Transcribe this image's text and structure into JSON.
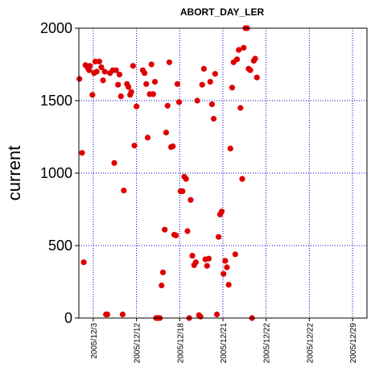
{
  "chart_data": {
    "type": "scatter",
    "title": "ABORT_DAY_LER",
    "xlabel": "",
    "ylabel": "current",
    "ylim": [
      0,
      2000
    ],
    "yticks": [
      0,
      500,
      1000,
      1500,
      2000
    ],
    "xticks": [
      {
        "label": "2005/12/3",
        "x": 5
      },
      {
        "label": "2005/12/12",
        "x": 20
      },
      {
        "label": "2005/12/18",
        "x": 35
      },
      {
        "label": "2005/12/21",
        "x": 50
      },
      {
        "label": "2005/12/22",
        "x": 65
      },
      {
        "label": "2005/12/22",
        "x": 80
      },
      {
        "label": "2005/12/29",
        "x": 95
      }
    ],
    "xlim": [
      0,
      100
    ],
    "grid": true,
    "colors": {
      "point": "#dd0000",
      "grid": "#0000cc",
      "axis": "#000000"
    },
    "series": [
      {
        "values": [
          [
            0.2,
            1650
          ],
          [
            1.1,
            1140
          ],
          [
            1.7,
            385
          ],
          [
            2.3,
            1745
          ],
          [
            3.1,
            1725
          ],
          [
            3.8,
            1740
          ],
          [
            3.6,
            1710
          ],
          [
            4.7,
            1540
          ],
          [
            5.3,
            1690
          ],
          [
            5.7,
            1770
          ],
          [
            6.2,
            1700
          ],
          [
            7.1,
            1770
          ],
          [
            7.8,
            1730
          ],
          [
            8.4,
            1640
          ],
          [
            9.0,
            1700
          ],
          [
            9.4,
            25
          ],
          [
            9.9,
            25
          ],
          [
            10.8,
            1690
          ],
          [
            11.8,
            1710
          ],
          [
            12.3,
            1070
          ],
          [
            12.9,
            1710
          ],
          [
            13.6,
            1610
          ],
          [
            14.1,
            1680
          ],
          [
            14.6,
            1530
          ],
          [
            15.2,
            25
          ],
          [
            15.6,
            880
          ],
          [
            16.7,
            1615
          ],
          [
            17.2,
            1595
          ],
          [
            17.8,
            1540
          ],
          [
            18.2,
            1560
          ],
          [
            18.8,
            1740
          ],
          [
            19.3,
            1190
          ],
          [
            20.0,
            1460
          ],
          [
            22.2,
            1710
          ],
          [
            22.8,
            1690
          ],
          [
            23.4,
            1615
          ],
          [
            23.9,
            1245
          ],
          [
            24.6,
            1545
          ],
          [
            25.2,
            1750
          ],
          [
            25.8,
            1545
          ],
          [
            26.4,
            1630
          ],
          [
            26.8,
            0
          ],
          [
            27.4,
            0
          ],
          [
            28.1,
            0
          ],
          [
            28.7,
            225
          ],
          [
            29.2,
            315
          ],
          [
            29.8,
            610
          ],
          [
            30.3,
            1280
          ],
          [
            30.8,
            1465
          ],
          [
            31.4,
            1765
          ],
          [
            32.0,
            1180
          ],
          [
            32.6,
            1185
          ],
          [
            33.1,
            575
          ],
          [
            33.7,
            570
          ],
          [
            34.2,
            1615
          ],
          [
            34.8,
            1490
          ],
          [
            35.3,
            875
          ],
          [
            36.0,
            875
          ],
          [
            36.6,
            975
          ],
          [
            37.2,
            960
          ],
          [
            37.7,
            600
          ],
          [
            38.3,
            0
          ],
          [
            38.8,
            815
          ],
          [
            39.4,
            430
          ],
          [
            40.0,
            365
          ],
          [
            40.6,
            385
          ],
          [
            41.1,
            1500
          ],
          [
            41.7,
            20
          ],
          [
            42.2,
            10
          ],
          [
            42.8,
            1610
          ],
          [
            43.4,
            1720
          ],
          [
            43.9,
            405
          ],
          [
            44.5,
            360
          ],
          [
            45.1,
            410
          ],
          [
            45.6,
            1630
          ],
          [
            46.2,
            1475
          ],
          [
            46.8,
            1375
          ],
          [
            47.3,
            1685
          ],
          [
            47.9,
            25
          ],
          [
            48.5,
            560
          ],
          [
            49.0,
            715
          ],
          [
            49.6,
            735
          ],
          [
            50.2,
            305
          ],
          [
            50.8,
            395
          ],
          [
            51.4,
            350
          ],
          [
            52.0,
            230
          ],
          [
            52.6,
            1170
          ],
          [
            53.2,
            1590
          ],
          [
            53.7,
            1765
          ],
          [
            54.3,
            440
          ],
          [
            54.9,
            1785
          ],
          [
            55.5,
            1850
          ],
          [
            56.1,
            1450
          ],
          [
            56.7,
            960
          ],
          [
            57.2,
            1865
          ],
          [
            57.8,
            2000
          ],
          [
            58.4,
            2000
          ],
          [
            58.9,
            1720
          ],
          [
            59.5,
            1710
          ],
          [
            60.1,
            0
          ],
          [
            60.7,
            1775
          ],
          [
            61.2,
            1790
          ],
          [
            61.8,
            1660
          ]
        ]
      }
    ]
  }
}
